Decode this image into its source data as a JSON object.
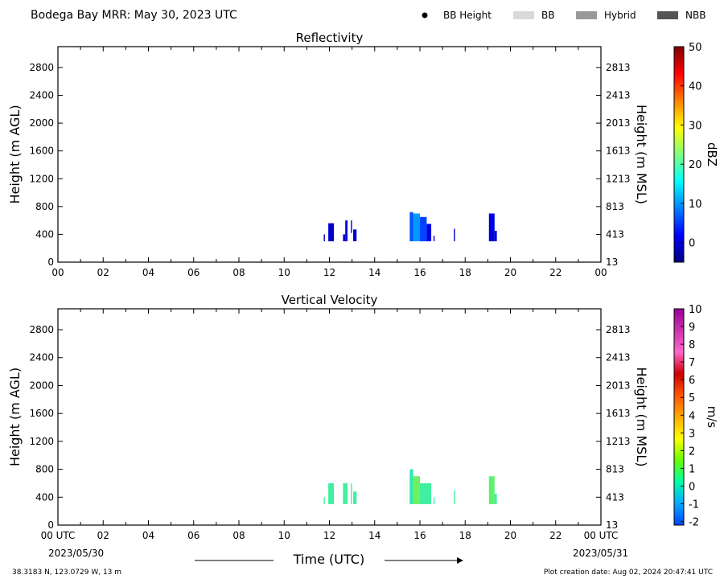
{
  "header": {
    "title": "Bodega Bay MRR:  May 30, 2023 UTC",
    "legend": [
      {
        "label": "BB Height",
        "kind": "dot",
        "color": "#000000"
      },
      {
        "label": "BB",
        "kind": "patch",
        "color": "#d9d9d9"
      },
      {
        "label": "Hybrid",
        "kind": "patch",
        "color": "#999999"
      },
      {
        "label": "NBB",
        "kind": "patch",
        "color": "#555555"
      }
    ]
  },
  "footer": {
    "location": "38.3183 N, 123.0729 W, 13 m",
    "created": "Plot creation date: Aug 02, 2024 20:47:41 UTC",
    "xaxis_label": "Time (UTC)",
    "start_date": "2023/05/30",
    "end_date": "2023/05/31"
  },
  "chart_data": [
    {
      "type": "heatmap",
      "title": "Reflectivity",
      "ylabel": "Height (m AGL)",
      "ylabel_right": "Height (m MSL)",
      "xlim": [
        0,
        24
      ],
      "ylim": [
        0,
        3100
      ],
      "x_ticks": [
        "00",
        "02",
        "04",
        "06",
        "08",
        "10",
        "12",
        "14",
        "16",
        "18",
        "20",
        "22",
        "00"
      ],
      "y_ticks": [
        0,
        400,
        800,
        1200,
        1600,
        2000,
        2400,
        2800
      ],
      "y_ticks_right": [
        "13",
        "413",
        "813",
        "1213",
        "1613",
        "2013",
        "2413",
        "2813"
      ],
      "colorbar": {
        "label": "dBZ",
        "range": [
          -5,
          50
        ],
        "ticks": [
          "0",
          "10",
          "20",
          "30",
          "40",
          "50"
        ],
        "tick_values": [
          0,
          10,
          20,
          30,
          40,
          50
        ],
        "colors": [
          "#00007f",
          "#0000ff",
          "#0080ff",
          "#00ffff",
          "#80ff80",
          "#ffff00",
          "#ff8000",
          "#ff0000",
          "#7f0000"
        ]
      },
      "segments": [
        {
          "start": 11.75,
          "end": 11.8,
          "top": 400,
          "bottom": 300,
          "color": "#0000cc"
        },
        {
          "start": 11.95,
          "end": 12.2,
          "top": 560,
          "bottom": 300,
          "color": "#0000cc"
        },
        {
          "start": 12.6,
          "end": 12.7,
          "top": 400,
          "bottom": 300,
          "color": "#0000cc"
        },
        {
          "start": 12.7,
          "end": 12.8,
          "top": 600,
          "bottom": 300,
          "color": "#0000dd"
        },
        {
          "start": 12.95,
          "end": 13.0,
          "top": 600,
          "bottom": 420,
          "color": "#0000dd"
        },
        {
          "start": 13.05,
          "end": 13.2,
          "top": 470,
          "bottom": 300,
          "color": "#0000cc"
        },
        {
          "start": 15.55,
          "end": 15.7,
          "top": 720,
          "bottom": 300,
          "color": "#0055ff"
        },
        {
          "start": 15.7,
          "end": 16.0,
          "top": 700,
          "bottom": 300,
          "color": "#0099ff"
        },
        {
          "start": 16.0,
          "end": 16.3,
          "top": 650,
          "bottom": 300,
          "color": "#0044ff"
        },
        {
          "start": 16.3,
          "end": 16.5,
          "top": 550,
          "bottom": 300,
          "color": "#0000dd"
        },
        {
          "start": 16.6,
          "end": 16.65,
          "top": 380,
          "bottom": 300,
          "color": "#0000cc"
        },
        {
          "start": 17.5,
          "end": 17.55,
          "top": 480,
          "bottom": 300,
          "color": "#0000cc"
        },
        {
          "start": 19.05,
          "end": 19.3,
          "top": 700,
          "bottom": 300,
          "color": "#0000dd"
        },
        {
          "start": 19.3,
          "end": 19.4,
          "top": 450,
          "bottom": 300,
          "color": "#0000cc"
        }
      ]
    },
    {
      "type": "heatmap",
      "title": "Vertical Velocity",
      "ylabel": "Height (m AGL)",
      "ylabel_right": "Height (m MSL)",
      "xlim": [
        0,
        24
      ],
      "ylim": [
        0,
        3100
      ],
      "x_ticks": [
        "00 UTC",
        "02",
        "04",
        "06",
        "08",
        "10",
        "12",
        "14",
        "16",
        "18",
        "20",
        "22",
        "00 UTC"
      ],
      "y_ticks": [
        0,
        400,
        800,
        1200,
        1600,
        2000,
        2400,
        2800
      ],
      "y_ticks_right": [
        "13",
        "413",
        "813",
        "1213",
        "1613",
        "2013",
        "2413",
        "2813"
      ],
      "colorbar": {
        "label": "m/s",
        "range": [
          -2.2,
          10
        ],
        "ticks": [
          "-2",
          "-1",
          "0",
          "1",
          "2",
          "3",
          "4",
          "5",
          "6",
          "7",
          "8",
          "9",
          "10"
        ],
        "tick_values": [
          -2,
          -1,
          0,
          1,
          2,
          3,
          4,
          5,
          6,
          7,
          8,
          9,
          10
        ],
        "colors": [
          "#0044ff",
          "#00aaff",
          "#00ffaa",
          "#66ff00",
          "#ffff00",
          "#ffaa00",
          "#ff5500",
          "#cc0000",
          "#ff66cc",
          "#cc33aa",
          "#990099"
        ]
      },
      "segments": [
        {
          "start": 11.75,
          "end": 11.8,
          "top": 400,
          "bottom": 300,
          "color": "#40f0a0"
        },
        {
          "start": 11.95,
          "end": 12.2,
          "top": 600,
          "bottom": 300,
          "color": "#40f0a0"
        },
        {
          "start": 12.6,
          "end": 12.8,
          "top": 600,
          "bottom": 300,
          "color": "#40f0a0"
        },
        {
          "start": 12.95,
          "end": 13.0,
          "top": 600,
          "bottom": 300,
          "color": "#40f0a0"
        },
        {
          "start": 13.05,
          "end": 13.2,
          "top": 480,
          "bottom": 300,
          "color": "#40f0a0"
        },
        {
          "start": 15.55,
          "end": 15.7,
          "top": 800,
          "bottom": 300,
          "color": "#30e8b0"
        },
        {
          "start": 15.7,
          "end": 16.0,
          "top": 700,
          "bottom": 300,
          "color": "#70f060"
        },
        {
          "start": 16.0,
          "end": 16.5,
          "top": 600,
          "bottom": 300,
          "color": "#40f0a0"
        },
        {
          "start": 16.6,
          "end": 16.65,
          "top": 400,
          "bottom": 300,
          "color": "#40f0a0"
        },
        {
          "start": 17.5,
          "end": 17.55,
          "top": 500,
          "bottom": 300,
          "color": "#40f0a0"
        },
        {
          "start": 19.05,
          "end": 19.3,
          "top": 700,
          "bottom": 300,
          "color": "#60f070"
        },
        {
          "start": 19.3,
          "end": 19.4,
          "top": 450,
          "bottom": 300,
          "color": "#40f0a0"
        }
      ]
    }
  ]
}
